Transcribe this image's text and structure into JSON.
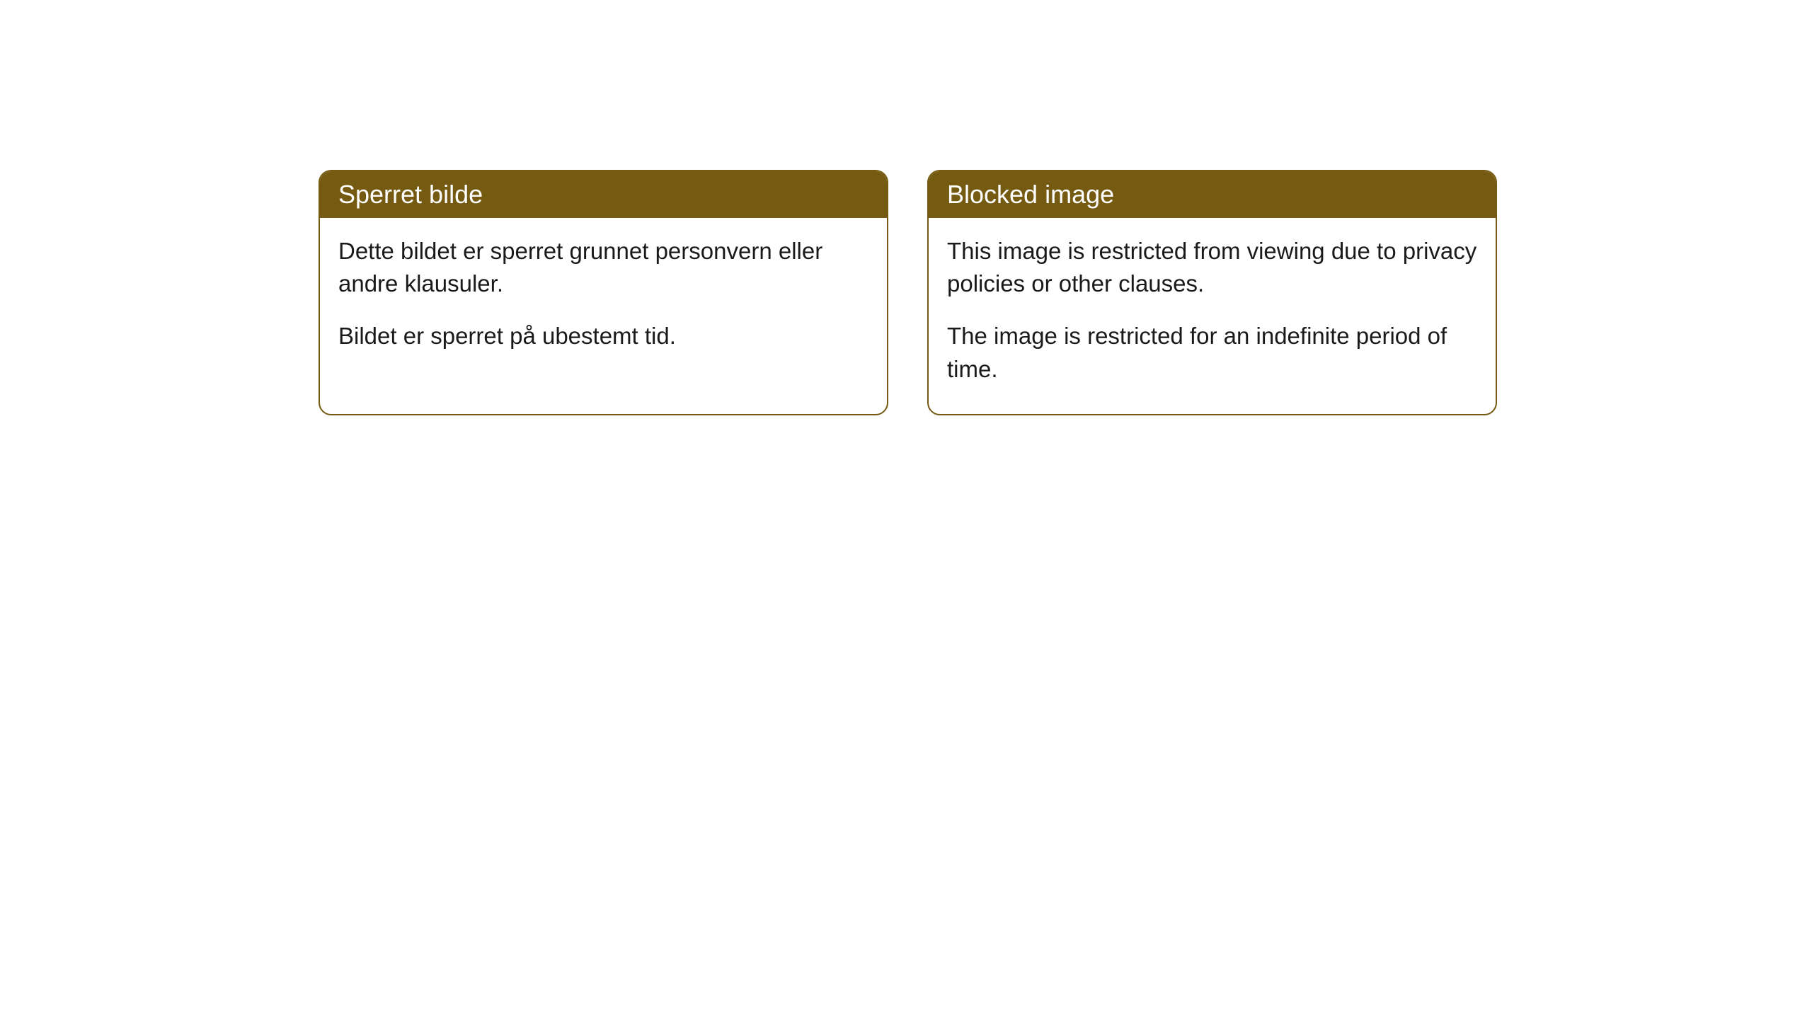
{
  "cards": [
    {
      "header": "Sperret bilde",
      "paragraph1": "Dette bildet er sperret grunnet personvern eller andre klausuler.",
      "paragraph2": "Bildet er sperret på ubestemt tid."
    },
    {
      "header": "Blocked image",
      "paragraph1": "This image is restricted from viewing due to privacy policies or other clauses.",
      "paragraph2": "The image is restricted for an indefinite period of time."
    }
  ],
  "styling": {
    "header_background": "#755a11",
    "header_text_color": "#ffffff",
    "border_color": "#755a11",
    "body_background": "#ffffff",
    "body_text_color": "#1a1a1a",
    "border_radius": 18,
    "header_fontsize": 36,
    "body_fontsize": 33
  }
}
